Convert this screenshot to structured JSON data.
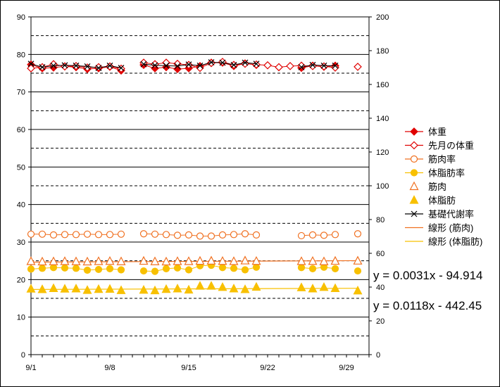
{
  "chart_data": {
    "type": "line",
    "x_tick_labels": [
      "9/1",
      "9/8",
      "9/15",
      "9/22",
      "9/29"
    ],
    "x_tick_days": [
      1,
      8,
      15,
      22,
      29
    ],
    "xlim": [
      1,
      31
    ],
    "ylim_left": [
      0,
      90
    ],
    "yticks_left": [
      0,
      10,
      20,
      30,
      40,
      50,
      60,
      70,
      80,
      90
    ],
    "ylim_right": [
      0,
      200
    ],
    "yticks_right": [
      0,
      20,
      40,
      60,
      80,
      100,
      120,
      140,
      160,
      180,
      200
    ],
    "grid": "horizontal solid every 10 and dashed at 5 (left scale)",
    "legend_position": "right",
    "series": [
      {
        "name": "体重",
        "axis": "left",
        "color": "#e00000",
        "marker": "diamond-filled",
        "line": true,
        "points": [
          [
            1,
            77.3
          ],
          [
            2,
            76.3
          ],
          [
            3,
            76.5
          ],
          [
            4,
            76.8
          ],
          [
            5,
            76.6
          ],
          [
            6,
            76.1
          ],
          [
            7,
            76.3
          ],
          [
            8,
            76.7
          ],
          [
            9,
            75.7
          ],
          [
            11,
            77.2
          ],
          [
            12,
            76.3
          ],
          [
            13,
            76.6
          ],
          [
            14,
            76.1
          ],
          [
            15,
            76.3
          ],
          [
            16,
            76.9
          ],
          [
            17,
            77.8
          ],
          [
            18,
            77.8
          ],
          [
            19,
            76.9
          ],
          [
            20,
            77.6
          ],
          [
            21,
            77.2
          ],
          [
            25,
            76.4
          ],
          [
            26,
            77.0
          ],
          [
            27,
            76.7
          ],
          [
            28,
            77.0
          ]
        ]
      },
      {
        "name": "先月の体重",
        "axis": "left",
        "color": "#e00000",
        "marker": "diamond-open",
        "line": true,
        "points": [
          [
            1,
            76.3
          ],
          [
            2,
            76.6
          ],
          [
            3,
            77.4
          ],
          [
            4,
            76.8
          ],
          [
            5,
            76.9
          ],
          [
            6,
            76.5
          ],
          [
            7,
            76.6
          ],
          [
            8,
            76.8
          ],
          [
            9,
            76.2
          ],
          [
            11,
            77.8
          ],
          [
            12,
            77.4
          ],
          [
            13,
            77.8
          ],
          [
            14,
            77.5
          ],
          [
            15,
            77.2
          ],
          [
            16,
            76.4
          ],
          [
            17,
            77.7
          ],
          [
            18,
            78.0
          ],
          [
            19,
            77.2
          ],
          [
            20,
            77.5
          ],
          [
            21,
            77.3
          ],
          [
            22,
            77.1
          ],
          [
            23,
            76.6
          ],
          [
            24,
            76.9
          ],
          [
            25,
            77.0
          ],
          [
            26,
            76.9
          ],
          [
            27,
            76.8
          ],
          [
            28,
            76.5
          ],
          [
            30,
            76.7
          ]
        ]
      },
      {
        "name": "筋肉率",
        "axis": "left",
        "color": "#f07020",
        "marker": "circle-open",
        "line": true,
        "points": [
          [
            1,
            32.1
          ],
          [
            2,
            32.1
          ],
          [
            3,
            31.9
          ],
          [
            4,
            32.0
          ],
          [
            5,
            32.0
          ],
          [
            6,
            32.1
          ],
          [
            7,
            32.0
          ],
          [
            8,
            32.0
          ],
          [
            9,
            32.1
          ],
          [
            11,
            32.2
          ],
          [
            12,
            32.1
          ],
          [
            13,
            32.0
          ],
          [
            14,
            31.8
          ],
          [
            15,
            31.9
          ],
          [
            16,
            31.6
          ],
          [
            17,
            31.6
          ],
          [
            18,
            31.9
          ],
          [
            19,
            32.0
          ],
          [
            20,
            32.2
          ],
          [
            21,
            31.9
          ],
          [
            25,
            31.7
          ],
          [
            26,
            31.9
          ],
          [
            27,
            31.8
          ],
          [
            28,
            32.0
          ],
          [
            30,
            32.2
          ]
        ]
      },
      {
        "name": "体脂肪率",
        "axis": "left",
        "color": "#f8c000",
        "marker": "circle-filled",
        "line": true,
        "points": [
          [
            1,
            22.8
          ],
          [
            2,
            23.0
          ],
          [
            3,
            23.2
          ],
          [
            4,
            23.1
          ],
          [
            5,
            23.0
          ],
          [
            6,
            22.5
          ],
          [
            7,
            22.7
          ],
          [
            8,
            22.9
          ],
          [
            9,
            22.6
          ],
          [
            11,
            22.3
          ],
          [
            12,
            22.2
          ],
          [
            13,
            22.9
          ],
          [
            14,
            23.1
          ],
          [
            15,
            22.6
          ],
          [
            16,
            23.7
          ],
          [
            17,
            23.8
          ],
          [
            18,
            23.2
          ],
          [
            19,
            23.0
          ],
          [
            20,
            22.6
          ],
          [
            21,
            23.3
          ],
          [
            25,
            23.2
          ],
          [
            26,
            22.9
          ],
          [
            27,
            23.3
          ],
          [
            28,
            22.9
          ],
          [
            30,
            22.3
          ]
        ]
      },
      {
        "name": "筋肉",
        "axis": "right",
        "color": "#f07020",
        "marker": "triangle-open",
        "line": false,
        "points": [
          [
            1,
            55.2
          ],
          [
            2,
            55.0
          ],
          [
            3,
            55.1
          ],
          [
            4,
            55.2
          ],
          [
            5,
            55.1
          ],
          [
            6,
            55.0
          ],
          [
            7,
            55.2
          ],
          [
            8,
            55.3
          ],
          [
            9,
            55.1
          ],
          [
            11,
            55.4
          ],
          [
            12,
            55.1
          ],
          [
            13,
            55.0
          ],
          [
            14,
            55.2
          ],
          [
            15,
            55.2
          ],
          [
            16,
            55.4
          ],
          [
            17,
            55.5
          ],
          [
            18,
            55.3
          ],
          [
            19,
            55.2
          ],
          [
            20,
            55.6
          ],
          [
            21,
            55.3
          ],
          [
            25,
            55.2
          ],
          [
            26,
            55.3
          ],
          [
            27,
            55.1
          ],
          [
            28,
            55.4
          ],
          [
            30,
            55.5
          ]
        ]
      },
      {
        "name": "体脂肪",
        "axis": "right",
        "color": "#f8c000",
        "marker": "triangle-filled",
        "line": false,
        "points": [
          [
            1,
            38.9
          ],
          [
            2,
            38.6
          ],
          [
            3,
            39.2
          ],
          [
            4,
            38.9
          ],
          [
            5,
            39.0
          ],
          [
            6,
            38.1
          ],
          [
            7,
            38.7
          ],
          [
            8,
            38.8
          ],
          [
            9,
            38.0
          ],
          [
            11,
            38.2
          ],
          [
            12,
            37.9
          ],
          [
            13,
            38.7
          ],
          [
            14,
            39.0
          ],
          [
            15,
            38.3
          ],
          [
            16,
            40.6
          ],
          [
            17,
            40.6
          ],
          [
            18,
            39.9
          ],
          [
            19,
            39.0
          ],
          [
            20,
            38.6
          ],
          [
            21,
            40.0
          ],
          [
            25,
            39.7
          ],
          [
            26,
            39.0
          ],
          [
            27,
            39.9
          ],
          [
            28,
            39.2
          ],
          [
            30,
            37.8
          ]
        ]
      },
      {
        "name": "基礎代謝率",
        "axis": "left",
        "color": "#000000",
        "marker": "x",
        "line": true,
        "points": [
          [
            1,
            77.5
          ],
          [
            2,
            76.6
          ],
          [
            3,
            77.0
          ],
          [
            4,
            77.1
          ],
          [
            5,
            77.0
          ],
          [
            6,
            76.8
          ],
          [
            7,
            76.4
          ],
          [
            8,
            77.0
          ],
          [
            9,
            76.4
          ],
          [
            11,
            77.4
          ],
          [
            12,
            77.1
          ],
          [
            13,
            77.0
          ],
          [
            14,
            76.9
          ],
          [
            15,
            77.3
          ],
          [
            16,
            77.0
          ],
          [
            17,
            77.9
          ],
          [
            18,
            77.8
          ],
          [
            19,
            77.2
          ],
          [
            20,
            77.8
          ],
          [
            21,
            77.5
          ],
          [
            25,
            76.6
          ],
          [
            26,
            77.2
          ],
          [
            27,
            77.0
          ],
          [
            28,
            77.0
          ]
        ]
      }
    ],
    "trendlines": [
      {
        "name": "線形 (筋肉)",
        "axis": "right",
        "color": "#f07020",
        "x_range": [
          1,
          30
        ],
        "start_value": 54.78,
        "end_value": 55.66
      },
      {
        "name": "線形 (体脂肪)",
        "axis": "right",
        "color": "#f8c000",
        "x_range": [
          1,
          30
        ],
        "start_value": 38.6,
        "end_value": 39.3
      }
    ],
    "equations": [
      "y = 0.0031x - 94.914",
      "y = 0.0118x - 442.45"
    ]
  }
}
